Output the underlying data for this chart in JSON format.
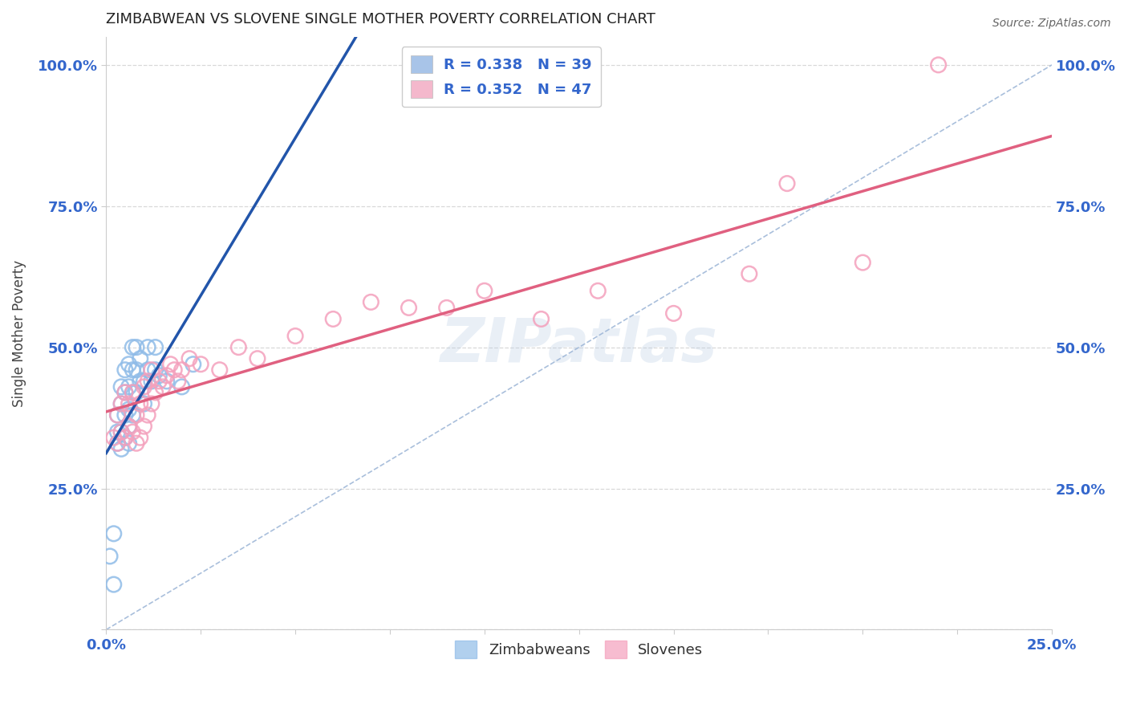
{
  "title": "ZIMBABWEAN VS SLOVENE SINGLE MOTHER POVERTY CORRELATION CHART",
  "source": "Source: ZipAtlas.com",
  "ylabel": "Single Mother Poverty",
  "watermark": "ZIPatlas",
  "xlim": [
    0.0,
    0.25
  ],
  "ylim": [
    0.0,
    1.05
  ],
  "xticks": [
    0.0,
    0.025,
    0.05,
    0.075,
    0.1,
    0.125,
    0.15,
    0.175,
    0.2,
    0.225,
    0.25
  ],
  "xticklabels_show": {
    "0.0": "0.0%",
    "0.25": "25.0%"
  },
  "yticks": [
    0.0,
    0.25,
    0.5,
    0.75,
    1.0
  ],
  "yticklabels": [
    "",
    "25.0%",
    "50.0%",
    "75.0%",
    "100.0%"
  ],
  "legend_entries": [
    {
      "label": "R = 0.338   N = 39",
      "color": "#a8c4e8"
    },
    {
      "label": "R = 0.352   N = 47",
      "color": "#f4b8cc"
    }
  ],
  "blue_scatter_color": "#90bce8",
  "pink_scatter_color": "#f4a0bc",
  "blue_line_color": "#2255aa",
  "pink_line_color": "#e06080",
  "dashed_line_color": "#a0b8d8",
  "grid_color": "#d8d8d8",
  "tick_label_color": "#3366cc",
  "zimbabweans_x": [
    0.001,
    0.002,
    0.002,
    0.003,
    0.003,
    0.003,
    0.004,
    0.004,
    0.004,
    0.004,
    0.005,
    0.005,
    0.005,
    0.005,
    0.006,
    0.006,
    0.006,
    0.006,
    0.006,
    0.007,
    0.007,
    0.007,
    0.007,
    0.008,
    0.008,
    0.008,
    0.009,
    0.009,
    0.01,
    0.01,
    0.011,
    0.011,
    0.012,
    0.013,
    0.013,
    0.014,
    0.016,
    0.02,
    0.023
  ],
  "zimbabweans_y": [
    0.13,
    0.08,
    0.17,
    0.33,
    0.35,
    0.38,
    0.32,
    0.35,
    0.4,
    0.43,
    0.34,
    0.38,
    0.42,
    0.46,
    0.33,
    0.36,
    0.39,
    0.43,
    0.47,
    0.38,
    0.42,
    0.46,
    0.5,
    0.42,
    0.46,
    0.5,
    0.44,
    0.48,
    0.4,
    0.44,
    0.46,
    0.5,
    0.44,
    0.46,
    0.5,
    0.45,
    0.44,
    0.43,
    0.47
  ],
  "slovenes_x": [
    0.002,
    0.003,
    0.003,
    0.004,
    0.004,
    0.005,
    0.005,
    0.006,
    0.006,
    0.007,
    0.007,
    0.008,
    0.008,
    0.009,
    0.009,
    0.01,
    0.01,
    0.011,
    0.011,
    0.012,
    0.012,
    0.013,
    0.014,
    0.015,
    0.016,
    0.017,
    0.018,
    0.019,
    0.02,
    0.022,
    0.025,
    0.03,
    0.035,
    0.04,
    0.05,
    0.06,
    0.07,
    0.08,
    0.09,
    0.1,
    0.115,
    0.13,
    0.15,
    0.17,
    0.18,
    0.2,
    0.22
  ],
  "slovenes_y": [
    0.34,
    0.33,
    0.38,
    0.35,
    0.4,
    0.34,
    0.42,
    0.36,
    0.4,
    0.35,
    0.42,
    0.33,
    0.38,
    0.34,
    0.4,
    0.36,
    0.43,
    0.38,
    0.44,
    0.4,
    0.46,
    0.42,
    0.44,
    0.43,
    0.45,
    0.47,
    0.46,
    0.44,
    0.46,
    0.48,
    0.47,
    0.46,
    0.5,
    0.48,
    0.52,
    0.55,
    0.58,
    0.57,
    0.57,
    0.6,
    0.55,
    0.6,
    0.56,
    0.63,
    0.79,
    0.65,
    1.0
  ]
}
